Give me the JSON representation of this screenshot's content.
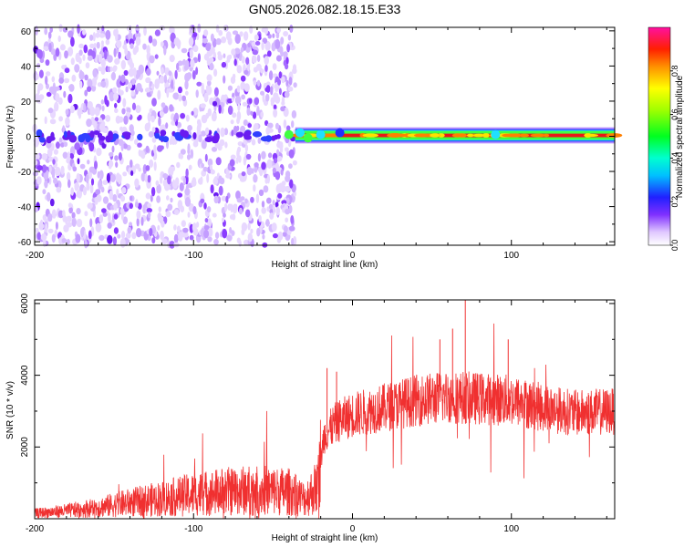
{
  "title": "GN05.2026.082.18.15.E33",
  "colors": {
    "spectrogram_low": "#b07cff",
    "spectrogram_high": "#e01010",
    "snr_line": "#f03030",
    "axes": "#000000"
  },
  "chart_data": [
    {
      "type": "heatmap",
      "xlabel": "Height of straight line (km)",
      "ylabel": "Frequency (Hz)",
      "xlim": [
        -200,
        165
      ],
      "ylim": [
        -62,
        62
      ],
      "xticks": [
        -200,
        -100,
        0,
        100
      ],
      "yticks": [
        60,
        40,
        20,
        0,
        -20,
        -40,
        -60
      ],
      "ytick_labels": [
        "60",
        "40",
        "20",
        "0",
        "-20",
        "-40",
        "-60"
      ],
      "grid": false,
      "noise_region_x": [
        -200,
        -36
      ],
      "signal_band_x": [
        -36,
        165
      ],
      "signal_band_freq": [
        -2,
        3
      ],
      "colorbar": {
        "label": "Normalized spectral amplitude",
        "range": [
          0.0,
          1.0
        ],
        "ticks": [
          0.0,
          0.2,
          0.4,
          0.6,
          0.8
        ],
        "tick_labels": [
          "0.0",
          "0.2",
          "0.4",
          "0.6",
          "0.8"
        ],
        "colormap": "rainbow (white-purple-blue-cyan-green-yellow-red-magenta)"
      }
    },
    {
      "type": "line",
      "xlabel": "Height of straight line (km)",
      "ylabel": "SNR (10 * v/v)",
      "xlim": [
        -200,
        165
      ],
      "ylim": [
        0,
        6100
      ],
      "xticks": [
        -200,
        -100,
        0,
        100
      ],
      "yticks": [
        2000,
        4000,
        6000
      ],
      "grid": false,
      "series_profile": [
        {
          "x": -200,
          "y": 150
        },
        {
          "x": -180,
          "y": 220
        },
        {
          "x": -160,
          "y": 320
        },
        {
          "x": -140,
          "y": 450
        },
        {
          "x": -120,
          "y": 560
        },
        {
          "x": -100,
          "y": 680
        },
        {
          "x": -80,
          "y": 760
        },
        {
          "x": -60,
          "y": 800
        },
        {
          "x": -40,
          "y": 750
        },
        {
          "x": -30,
          "y": 550
        },
        {
          "x": -22,
          "y": 900
        },
        {
          "x": -18,
          "y": 2300
        },
        {
          "x": -10,
          "y": 2700
        },
        {
          "x": 0,
          "y": 2900
        },
        {
          "x": 20,
          "y": 3100
        },
        {
          "x": 40,
          "y": 3300
        },
        {
          "x": 60,
          "y": 3400
        },
        {
          "x": 80,
          "y": 3350
        },
        {
          "x": 100,
          "y": 3300
        },
        {
          "x": 120,
          "y": 3100
        },
        {
          "x": 140,
          "y": 2950
        },
        {
          "x": 165,
          "y": 3000
        }
      ],
      "peaks": [
        {
          "x": -16,
          "y": 4200
        },
        {
          "x": -10,
          "y": 4100
        },
        {
          "x": 55,
          "y": 5000
        },
        {
          "x": 63,
          "y": 5300
        },
        {
          "x": 71,
          "y": 6100
        },
        {
          "x": 98,
          "y": 5000
        }
      ]
    }
  ]
}
